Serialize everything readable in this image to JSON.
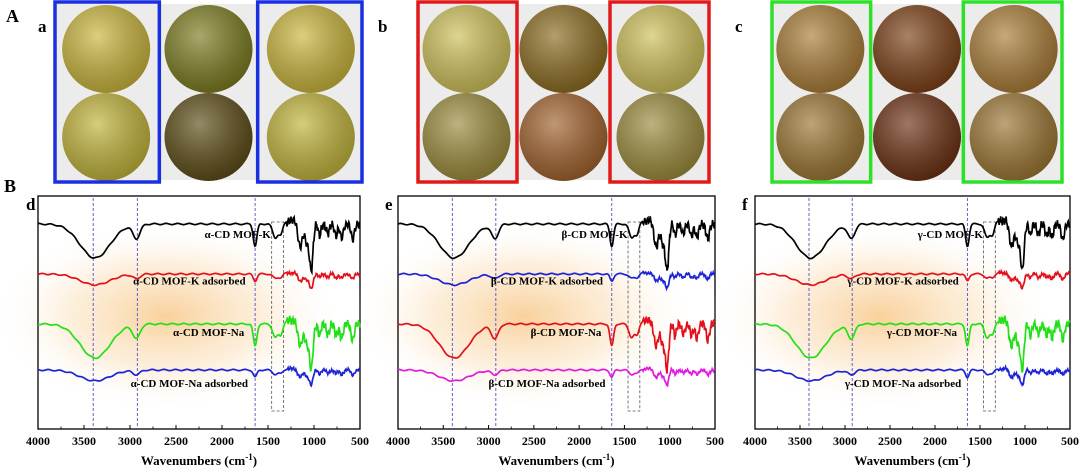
{
  "section_labels": {
    "A": "A",
    "B": "B"
  },
  "photo_panels": [
    {
      "label": "a",
      "frame_color": "#1a2fe0",
      "swatches": [
        [
          "#c8b43a",
          "#7a7a1e",
          "#c8b43a"
        ],
        [
          "#c0b238",
          "#5a4a14",
          "#c0b238"
        ]
      ]
    },
    {
      "label": "b",
      "frame_color": "#e01a1a",
      "swatches": [
        [
          "#cdbf58",
          "#8a6a1e",
          "#cdbf58"
        ],
        [
          "#9a8a3a",
          "#a0602a",
          "#9a8a3a"
        ]
      ]
    },
    {
      "label": "c",
      "frame_color": "#2ee02a",
      "swatches": [
        [
          "#a87b35",
          "#7a3e14",
          "#a87b35"
        ],
        [
          "#9a7430",
          "#6a2e10",
          "#9a7430"
        ]
      ]
    }
  ],
  "chart_data": [
    {
      "label": "d",
      "type": "line",
      "xlabel": "Wavenumbers (cm",
      "xlabel_sup": "-1",
      "xlabel_close": ")",
      "xlim": [
        4000,
        500
      ],
      "xticks": [
        "4000",
        "3500",
        "3000",
        "2500",
        "2000",
        "1500",
        "1000",
        "500"
      ],
      "xtick_values": [
        4000,
        3500,
        3000,
        2500,
        2000,
        1500,
        1000,
        500
      ],
      "guide_lines": [
        3400,
        2920,
        1640
      ],
      "box_range": [
        1460,
        1330
      ],
      "series": [
        {
          "name": "α-CD MOF-K",
          "color": "#000000",
          "style": "strong"
        },
        {
          "name": "α-CD MOF-K adsorbed",
          "color": "#e3101a",
          "style": "weak"
        },
        {
          "name": "α-CD MOF-Na",
          "color": "#22e016",
          "style": "strong"
        },
        {
          "name": "α-CD MOF-Na adsorbed",
          "color": "#1c23d4",
          "style": "weak"
        }
      ]
    },
    {
      "label": "e",
      "type": "line",
      "xlabel": "Wavenumbers (cm",
      "xlabel_sup": "-1",
      "xlabel_close": ")",
      "xlim": [
        4000,
        500
      ],
      "xticks": [
        "4000",
        "3500",
        "3000",
        "2500",
        "2000",
        "1500",
        "1000",
        "500"
      ],
      "xtick_values": [
        4000,
        3500,
        3000,
        2500,
        2000,
        1500,
        1000,
        500
      ],
      "guide_lines": [
        3400,
        2920,
        1640
      ],
      "box_range": [
        1460,
        1330
      ],
      "series": [
        {
          "name": "β-CD MOF-K",
          "color": "#000000",
          "style": "strong"
        },
        {
          "name": "β-CD MOF-K adsorbed",
          "color": "#1c23d4",
          "style": "weak"
        },
        {
          "name": "β-CD MOF-Na",
          "color": "#e3101a",
          "style": "strong"
        },
        {
          "name": "β-CD MOF-Na adsorbed",
          "color": "#e21adf",
          "style": "weak"
        }
      ]
    },
    {
      "label": "f",
      "type": "line",
      "xlabel": "Wavenumbers (cm",
      "xlabel_sup": "-1",
      "xlabel_close": ")",
      "xlim": [
        4000,
        500
      ],
      "xticks": [
        "4000",
        "3500",
        "3000",
        "2500",
        "2000",
        "1500",
        "1000",
        "500"
      ],
      "xtick_values": [
        4000,
        3500,
        3000,
        2500,
        2000,
        1500,
        1000,
        500
      ],
      "guide_lines": [
        3400,
        2920,
        1640
      ],
      "box_range": [
        1460,
        1330
      ],
      "series": [
        {
          "name": "γ-CD MOF-K",
          "color": "#000000",
          "style": "strong"
        },
        {
          "name": "γ-CD MOF-K adsorbed",
          "color": "#e3101a",
          "style": "weak"
        },
        {
          "name": "γ-CD MOF-Na",
          "color": "#22e016",
          "style": "strong"
        },
        {
          "name": "γ-CD MOF-Na adsorbed",
          "color": "#1c23d4",
          "style": "weak"
        }
      ]
    }
  ]
}
